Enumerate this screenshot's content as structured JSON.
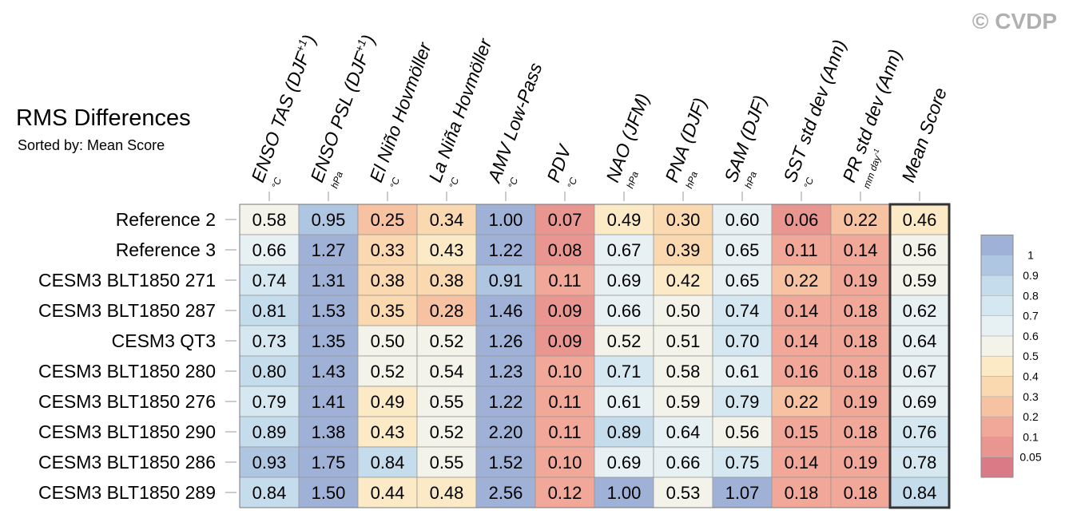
{
  "copyright": "© CVDP",
  "chart_data": {
    "type": "heatmap",
    "title": "RMS Differences",
    "subtitle": "Sorted by: Mean Score",
    "columns": [
      {
        "label": "ENSO TAS (DJF",
        "sup": "+1",
        "suffix": ")",
        "unit": "°C"
      },
      {
        "label": "ENSO PSL (DJF",
        "sup": "+1",
        "suffix": ")",
        "unit": "hPa"
      },
      {
        "label": "El Niño Hovmöller",
        "sup": "",
        "suffix": "",
        "unit": "°C"
      },
      {
        "label": "La Niña Hovmöller",
        "sup": "",
        "suffix": "",
        "unit": "°C"
      },
      {
        "label": "AMV Low-Pass",
        "sup": "",
        "suffix": "",
        "unit": "°C"
      },
      {
        "label": "PDV",
        "sup": "",
        "suffix": "",
        "unit": "°C"
      },
      {
        "label": "NAO (JFM)",
        "sup": "",
        "suffix": "",
        "unit": "hPa"
      },
      {
        "label": "PNA (DJF)",
        "sup": "",
        "suffix": "",
        "unit": "hPa"
      },
      {
        "label": "SAM (DJF)",
        "sup": "",
        "suffix": "",
        "unit": "hPa"
      },
      {
        "label": "SST std dev (Ann)",
        "sup": "",
        "suffix": "",
        "unit": "°C"
      },
      {
        "label": "PR std dev (Ann)",
        "sup": "",
        "suffix": "",
        "unit": "mm day",
        "unit_sup": "-1"
      },
      {
        "label": "Mean Score",
        "sup": "",
        "suffix": "",
        "unit": ""
      }
    ],
    "rows": [
      {
        "name": "Reference 2",
        "values": [
          0.58,
          0.95,
          0.25,
          0.34,
          1.0,
          0.07,
          0.49,
          0.3,
          0.6,
          0.06,
          0.22,
          0.46
        ]
      },
      {
        "name": "Reference 3",
        "values": [
          0.66,
          1.27,
          0.33,
          0.43,
          1.22,
          0.08,
          0.67,
          0.39,
          0.65,
          0.11,
          0.14,
          0.56
        ]
      },
      {
        "name": "CESM3 BLT1850 271",
        "values": [
          0.74,
          1.31,
          0.38,
          0.38,
          0.91,
          0.11,
          0.69,
          0.42,
          0.65,
          0.22,
          0.19,
          0.59
        ]
      },
      {
        "name": "CESM3 BLT1850 287",
        "values": [
          0.81,
          1.53,
          0.35,
          0.28,
          1.46,
          0.09,
          0.66,
          0.5,
          0.74,
          0.14,
          0.18,
          0.62
        ]
      },
      {
        "name": "CESM3 QT3",
        "values": [
          0.73,
          1.35,
          0.5,
          0.52,
          1.26,
          0.09,
          0.52,
          0.51,
          0.7,
          0.14,
          0.18,
          0.64
        ]
      },
      {
        "name": "CESM3 BLT1850 280",
        "values": [
          0.8,
          1.43,
          0.52,
          0.54,
          1.23,
          0.1,
          0.71,
          0.58,
          0.61,
          0.16,
          0.18,
          0.67
        ]
      },
      {
        "name": "CESM3 BLT1850 276",
        "values": [
          0.79,
          1.41,
          0.49,
          0.55,
          1.22,
          0.11,
          0.61,
          0.59,
          0.79,
          0.22,
          0.19,
          0.69
        ]
      },
      {
        "name": "CESM3 BLT1850 290",
        "values": [
          0.89,
          1.38,
          0.43,
          0.52,
          2.2,
          0.11,
          0.89,
          0.64,
          0.56,
          0.15,
          0.18,
          0.76
        ]
      },
      {
        "name": "CESM3 BLT1850 286",
        "values": [
          0.93,
          1.75,
          0.84,
          0.55,
          1.52,
          0.1,
          0.69,
          0.66,
          0.75,
          0.14,
          0.19,
          0.78
        ]
      },
      {
        "name": "CESM3 BLT1850 289",
        "values": [
          0.84,
          1.5,
          0.44,
          0.48,
          2.56,
          0.12,
          1.0,
          0.53,
          1.07,
          0.18,
          0.18,
          0.84
        ]
      }
    ],
    "legend": {
      "placement": "right",
      "bins": [
        {
          "label": "",
          "color": "#d97a87"
        },
        {
          "label": "0.05",
          "color": "#e99590"
        },
        {
          "label": "0.1",
          "color": "#f1a898"
        },
        {
          "label": "0.2",
          "color": "#f7c2a2"
        },
        {
          "label": "0.3",
          "color": "#fad8b0"
        },
        {
          "label": "0.4",
          "color": "#fbeac5"
        },
        {
          "label": "0.5",
          "color": "#f4f3e9"
        },
        {
          "label": "0.6",
          "color": "#e7f1f4"
        },
        {
          "label": "0.7",
          "color": "#d5e8f1"
        },
        {
          "label": "0.8",
          "color": "#c4dcec"
        },
        {
          "label": "0.9",
          "color": "#aec6e1"
        },
        {
          "label": "1",
          "color": "#9fb1d6"
        }
      ]
    },
    "thresholds": [
      0.05,
      0.1,
      0.2,
      0.3,
      0.4,
      0.5,
      0.6,
      0.7,
      0.8,
      0.9,
      1.0
    ],
    "colors": [
      "#d97a87",
      "#e99590",
      "#f1a898",
      "#f7c2a2",
      "#fad8b0",
      "#fbeac5",
      "#f4f3e9",
      "#e7f1f4",
      "#d5e8f1",
      "#c4dcec",
      "#aec6e1",
      "#9fb1d6"
    ]
  }
}
